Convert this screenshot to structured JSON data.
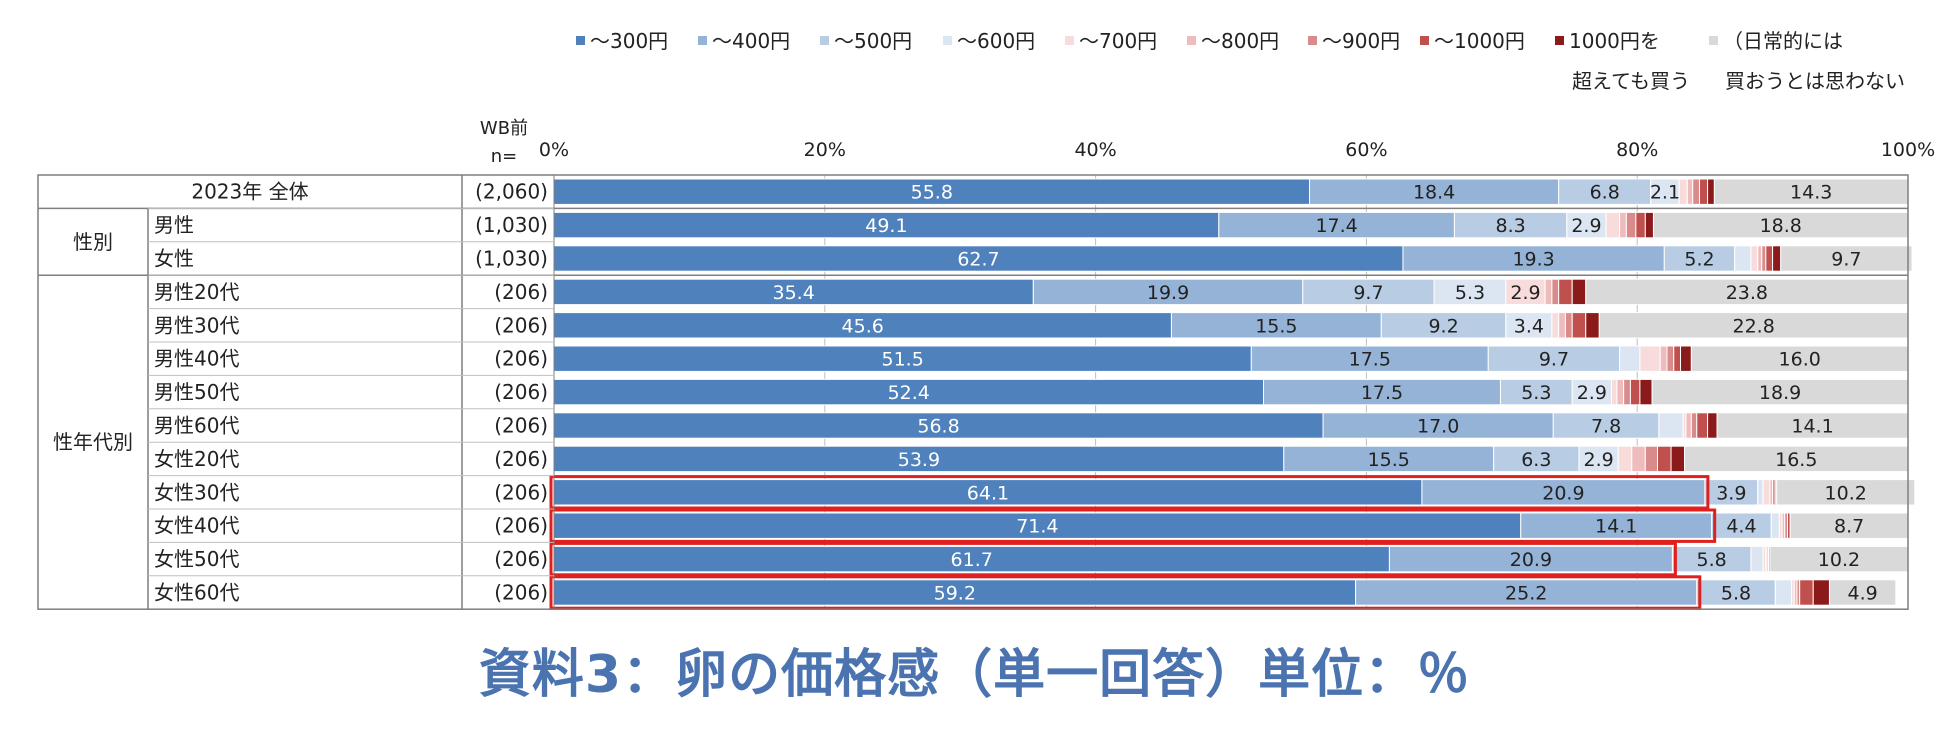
{
  "chart_data": {
    "type": "bar",
    "stacked": true,
    "orientation": "horizontal",
    "legend": [
      {
        "label": "〜300円",
        "color": "#4f81bd"
      },
      {
        "label": "〜400円",
        "color": "#95b3d7"
      },
      {
        "label": "〜500円",
        "color": "#b8cce4"
      },
      {
        "label": "〜600円",
        "color": "#dce6f2"
      },
      {
        "label": "〜700円",
        "color": "#f8dcdc"
      },
      {
        "label": "〜800円",
        "color": "#eebcbc"
      },
      {
        "label": "〜900円",
        "color": "#d98a8a"
      },
      {
        "label": "〜1000円",
        "color": "#c0504d"
      },
      {
        "label": "1000円を",
        "label2": "超えても買う",
        "color": "#8b1a1a"
      },
      {
        "label": "（日常的には",
        "label2": "買おうとは思わない",
        "color": "#d9d9d9"
      }
    ],
    "header": {
      "label1": "WB前",
      "label2": "n="
    },
    "x_ticks": [
      "0%",
      "20%",
      "40%",
      "60%",
      "80%",
      "100%"
    ],
    "xlim": [
      0,
      100
    ],
    "groups": [
      {
        "label": "",
        "rows": 1
      },
      {
        "label": "性別",
        "rows": 2
      },
      {
        "label": "性年代別",
        "rows": 10
      }
    ],
    "rows": [
      {
        "label": "2023年  全体",
        "n": "(2,060)",
        "values": [
          55.8,
          18.4,
          6.8,
          2.1,
          0.6,
          0.4,
          0.5,
          0.6,
          0.5,
          14.3
        ],
        "labels": [
          "55.8",
          "18.4",
          "6.8",
          "2.1",
          "",
          "",
          "",
          "",
          "",
          "14.3"
        ],
        "highlight": false
      },
      {
        "label": "男性",
        "n": "(1,030)",
        "values": [
          49.1,
          17.4,
          8.3,
          2.9,
          1.0,
          0.5,
          0.7,
          0.7,
          0.6,
          18.8
        ],
        "labels": [
          "49.1",
          "17.4",
          "8.3",
          "2.9",
          "",
          "",
          "",
          "",
          "",
          "18.8"
        ],
        "highlight": false
      },
      {
        "label": "女性",
        "n": "(1,030)",
        "values": [
          62.7,
          19.3,
          5.2,
          1.2,
          0.5,
          0.3,
          0.3,
          0.5,
          0.6,
          9.7
        ],
        "labels": [
          "62.7",
          "19.3",
          "5.2",
          "",
          "",
          "",
          "",
          "",
          "",
          "9.7"
        ],
        "highlight": false
      },
      {
        "label": "男性20代",
        "n": "(206)",
        "values": [
          35.4,
          19.9,
          9.7,
          5.3,
          2.9,
          0.5,
          0.5,
          1.0,
          1.0,
          23.8
        ],
        "labels": [
          "35.4",
          "19.9",
          "9.7",
          "5.3",
          "2.9",
          "",
          "",
          "",
          "",
          "23.8"
        ],
        "highlight": false
      },
      {
        "label": "男性30代",
        "n": "(206)",
        "values": [
          45.6,
          15.5,
          9.2,
          3.4,
          0.5,
          0.5,
          0.5,
          1.0,
          1.0,
          22.8
        ],
        "labels": [
          "45.6",
          "15.5",
          "9.2",
          "3.4",
          "",
          "",
          "",
          "",
          "",
          "22.8"
        ],
        "highlight": false
      },
      {
        "label": "男性40代",
        "n": "(206)",
        "values": [
          51.5,
          17.5,
          9.7,
          1.5,
          1.5,
          0.5,
          0.5,
          0.5,
          0.8,
          16.0
        ],
        "labels": [
          "51.5",
          "17.5",
          "9.7",
          "",
          "",
          "",
          "",
          "",
          "",
          "16.0"
        ],
        "highlight": false
      },
      {
        "label": "男性50代",
        "n": "(206)",
        "values": [
          52.4,
          17.5,
          5.3,
          2.9,
          0.4,
          0.5,
          0.5,
          0.7,
          0.9,
          18.9
        ],
        "labels": [
          "52.4",
          "17.5",
          "5.3",
          "2.9",
          "",
          "",
          "",
          "",
          "",
          "18.9"
        ],
        "highlight": false
      },
      {
        "label": "男性60代",
        "n": "(206)",
        "values": [
          56.8,
          17.0,
          7.8,
          1.8,
          0.2,
          0.4,
          0.4,
          0.8,
          0.7,
          14.1
        ],
        "labels": [
          "56.8",
          "17.0",
          "7.8",
          "",
          "",
          "",
          "",
          "",
          "",
          "14.1"
        ],
        "highlight": false
      },
      {
        "label": "女性20代",
        "n": "(206)",
        "values": [
          53.9,
          15.5,
          6.3,
          2.9,
          1.0,
          1.0,
          0.9,
          1.0,
          1.0,
          16.5
        ],
        "labels": [
          "53.9",
          "15.5",
          "6.3",
          "2.9",
          "",
          "",
          "",
          "",
          "",
          "16.5"
        ],
        "highlight": false
      },
      {
        "label": "女性30代",
        "n": "(206)",
        "values": [
          64.1,
          20.9,
          3.9,
          0.4,
          0.5,
          0.2,
          0.2,
          0.1,
          0.0,
          10.2
        ],
        "labels": [
          "64.1",
          "20.9",
          "3.9",
          "",
          "",
          "",
          "",
          "",
          "",
          "10.2"
        ],
        "highlight": true
      },
      {
        "label": "女性40代",
        "n": "(206)",
        "values": [
          71.4,
          14.1,
          4.4,
          0.6,
          0.2,
          0.2,
          0.2,
          0.2,
          0.0,
          8.7
        ],
        "labels": [
          "71.4",
          "14.1",
          "4.4",
          "",
          "",
          "",
          "",
          "",
          "",
          "8.7"
        ],
        "highlight": true
      },
      {
        "label": "女性50代",
        "n": "(206)",
        "values": [
          61.7,
          20.9,
          5.8,
          0.9,
          0.2,
          0.1,
          0.1,
          0.1,
          0.0,
          10.2
        ],
        "labels": [
          "61.7",
          "20.9",
          "5.8",
          "",
          "",
          "",
          "",
          "",
          "",
          "10.2"
        ],
        "highlight": true
      },
      {
        "label": "女性60代",
        "n": "(206)",
        "values": [
          59.2,
          25.2,
          5.8,
          1.2,
          0.2,
          0.2,
          0.2,
          1.0,
          1.2,
          4.9
        ],
        "labels": [
          "59.2",
          "25.2",
          "5.8",
          "",
          "",
          "",
          "",
          "",
          "",
          "4.9"
        ],
        "highlight": true
      }
    ]
  },
  "caption": "資料3：卵の価格感（単一回答）単位：％"
}
